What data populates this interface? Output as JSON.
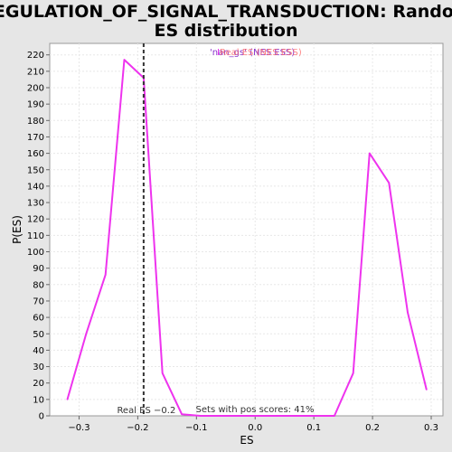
{
  "chart_data": {
    "type": "line",
    "title_line1": "REGULATION_OF_SIGNAL_TRANSDUCTION: Random",
    "title_line2": "ES distribution",
    "xlabel": "ES",
    "ylabel": "P(ES)",
    "xlim": [
      -0.35,
      0.32
    ],
    "ylim": [
      0,
      227
    ],
    "x_ticks": [
      -0.3,
      -0.2,
      -0.1,
      0.0,
      0.1,
      0.2,
      0.3
    ],
    "x_tick_labels": [
      "−0.3",
      "−0.2",
      "−0.1",
      "0.0",
      "0.1",
      "0.2",
      "0.3"
    ],
    "y_ticks": [
      0,
      10,
      20,
      30,
      40,
      50,
      60,
      70,
      80,
      90,
      100,
      110,
      120,
      130,
      140,
      150,
      160,
      170,
      180,
      190,
      200,
      210,
      220
    ],
    "grid": true,
    "series": [
      {
        "color": "#ee33ee",
        "x": [
          -0.32,
          -0.288,
          -0.255,
          -0.223,
          -0.19,
          -0.158,
          -0.125,
          -0.093,
          -0.06,
          -0.028,
          0.005,
          0.037,
          0.07,
          0.102,
          0.135,
          0.167,
          0.195,
          0.228,
          0.26,
          0.292
        ],
        "y": [
          10,
          50,
          86,
          217,
          206,
          26,
          1,
          0,
          0,
          0,
          0,
          0,
          0,
          0,
          0,
          26,
          160,
          142,
          63,
          16
        ]
      }
    ],
    "real_es": -0.19,
    "real_es_label": "Real ES −0.2",
    "pos_scores_label": "Sets with pos scores: 41%",
    "legend_entries": [
      {
        "text": "'nan_gs' (NES ESS)",
        "color": "#8833cc"
      },
      {
        "text": "I",
        "color": "#ee33ee"
      },
      {
        "text": "Real ES (NES ESS)",
        "color": "#ff6666"
      }
    ]
  }
}
